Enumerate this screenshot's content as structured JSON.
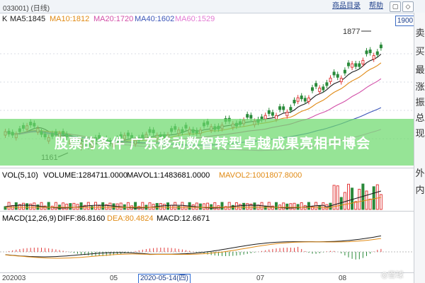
{
  "window": {
    "title": "033001) (日线)",
    "tabs": [
      "商品目录",
      "帮助"
    ],
    "buttons": [
      "▢",
      "◇"
    ]
  },
  "main": {
    "k_marker": "K",
    "ma_labels": [
      {
        "text": "MA5:1845",
        "color": "#1a1a1a"
      },
      {
        "text": "MA10:1812",
        "color": "#e08a14"
      },
      {
        "text": "MA20:1720",
        "color": "#d24fa8"
      },
      {
        "text": "MA40:1602",
        "color": "#3b55b8"
      },
      {
        "text": "MA60:1529",
        "color": "#e37ad3"
      }
    ],
    "price_box": "1900",
    "annotation_high": "1877",
    "annotation_low": "1161"
  },
  "banner": {
    "text": "股票的条件 广东移动数智转型卓越成果亮相中博会"
  },
  "volume": {
    "head": [
      {
        "text": "VOL(5,10)",
        "color": "#1a1a1a"
      },
      {
        "text": "VOLUME:1284711.0000",
        "color": "#1a1a1a"
      },
      {
        "text": "MAVOL1:1483681.0000",
        "color": "#1a1a1a"
      },
      {
        "text": "MAVOL2:1001807.8000",
        "color": "#e08a14"
      }
    ]
  },
  "macd": {
    "head": [
      {
        "text": "MACD(12,26,9)",
        "color": "#1a1a1a"
      },
      {
        "text": "DIFF:86.8160",
        "color": "#1a1a1a"
      },
      {
        "text": "DEA:80.4824",
        "color": "#e08a14"
      },
      {
        "text": "MACD:12.6671",
        "color": "#1a1a1a"
      }
    ]
  },
  "xaxis": {
    "labels": [
      "202003",
      "05",
      "07",
      "08"
    ],
    "cursor": "2020-05-14(四)"
  },
  "sidebar": {
    "items": [
      "卖",
      "买",
      "最",
      "涨",
      "振",
      "总",
      "现",
      "外",
      "内"
    ]
  },
  "watermark": "◎雪球"
}
